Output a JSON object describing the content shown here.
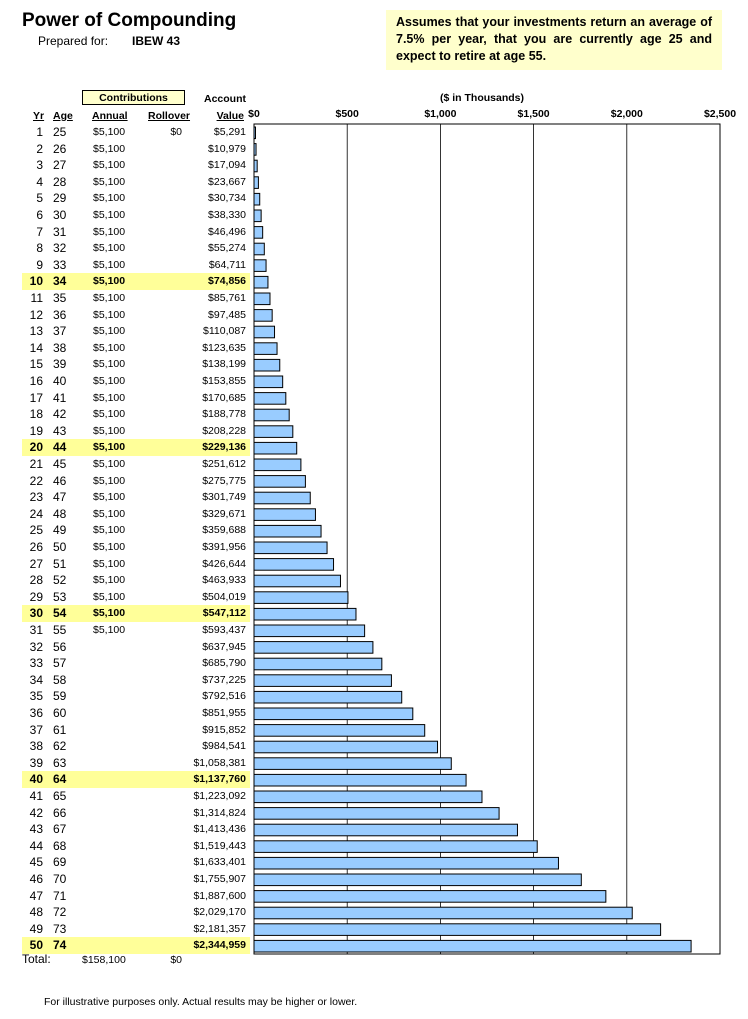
{
  "header": {
    "title": "Power of Compounding",
    "prepared_label": "Prepared for:",
    "prepared_name": "IBEW 43",
    "assumption": "Assumes that your investments return an average of 7.5% per year, that you are currently age 25 and expect to retire at age 55."
  },
  "table_headers": {
    "contributions": "Contributions",
    "account": "Account",
    "yr": "Yr",
    "age": "Age",
    "annual": "Annual",
    "rollover": "Rollover",
    "value": "Value"
  },
  "chart_data": {
    "type": "bar",
    "orientation": "horizontal",
    "title": "($ in Thousands)",
    "xlim": [
      0,
      2500
    ],
    "x_ticks": [
      "$0",
      "$500",
      "$1,000",
      "$1,500",
      "$2,000",
      "$2,500"
    ],
    "x_tick_values": [
      0,
      500,
      1000,
      1500,
      2000,
      2500
    ],
    "grid": true,
    "bar_color": "#99ccff",
    "highlight_color": "#ffff99",
    "categories": [
      "1",
      "2",
      "3",
      "4",
      "5",
      "6",
      "7",
      "8",
      "9",
      "10",
      "11",
      "12",
      "13",
      "14",
      "15",
      "16",
      "17",
      "18",
      "19",
      "20",
      "21",
      "22",
      "23",
      "24",
      "25",
      "26",
      "27",
      "28",
      "29",
      "30",
      "31",
      "32",
      "33",
      "34",
      "35",
      "36",
      "37",
      "38",
      "39",
      "40",
      "41",
      "42",
      "43",
      "44",
      "45",
      "46",
      "47",
      "48",
      "49",
      "50"
    ],
    "values": [
      5.291,
      10.979,
      17.094,
      23.667,
      30.734,
      38.33,
      46.496,
      55.274,
      64.711,
      74.856,
      85.761,
      97.485,
      110.087,
      123.635,
      138.199,
      153.855,
      170.685,
      188.778,
      208.228,
      229.136,
      251.612,
      275.775,
      301.749,
      329.671,
      359.688,
      391.956,
      426.644,
      463.933,
      504.019,
      547.112,
      593.437,
      637.945,
      685.79,
      737.225,
      792.516,
      851.955,
      915.852,
      984.541,
      1058.381,
      1137.76,
      1223.092,
      1314.824,
      1413.436,
      1519.443,
      1633.401,
      1755.907,
      1887.6,
      2029.17,
      2181.357,
      2344.959
    ]
  },
  "rows": [
    {
      "yr": "1",
      "age": "25",
      "annual": "$5,100",
      "rollover": "$0",
      "value": "$5,291",
      "hl": false
    },
    {
      "yr": "2",
      "age": "26",
      "annual": "$5,100",
      "rollover": "",
      "value": "$10,979",
      "hl": false
    },
    {
      "yr": "3",
      "age": "27",
      "annual": "$5,100",
      "rollover": "",
      "value": "$17,094",
      "hl": false
    },
    {
      "yr": "4",
      "age": "28",
      "annual": "$5,100",
      "rollover": "",
      "value": "$23,667",
      "hl": false
    },
    {
      "yr": "5",
      "age": "29",
      "annual": "$5,100",
      "rollover": "",
      "value": "$30,734",
      "hl": false
    },
    {
      "yr": "6",
      "age": "30",
      "annual": "$5,100",
      "rollover": "",
      "value": "$38,330",
      "hl": false
    },
    {
      "yr": "7",
      "age": "31",
      "annual": "$5,100",
      "rollover": "",
      "value": "$46,496",
      "hl": false
    },
    {
      "yr": "8",
      "age": "32",
      "annual": "$5,100",
      "rollover": "",
      "value": "$55,274",
      "hl": false
    },
    {
      "yr": "9",
      "age": "33",
      "annual": "$5,100",
      "rollover": "",
      "value": "$64,711",
      "hl": false
    },
    {
      "yr": "10",
      "age": "34",
      "annual": "$5,100",
      "rollover": "",
      "value": "$74,856",
      "hl": true
    },
    {
      "yr": "11",
      "age": "35",
      "annual": "$5,100",
      "rollover": "",
      "value": "$85,761",
      "hl": false
    },
    {
      "yr": "12",
      "age": "36",
      "annual": "$5,100",
      "rollover": "",
      "value": "$97,485",
      "hl": false
    },
    {
      "yr": "13",
      "age": "37",
      "annual": "$5,100",
      "rollover": "",
      "value": "$110,087",
      "hl": false
    },
    {
      "yr": "14",
      "age": "38",
      "annual": "$5,100",
      "rollover": "",
      "value": "$123,635",
      "hl": false
    },
    {
      "yr": "15",
      "age": "39",
      "annual": "$5,100",
      "rollover": "",
      "value": "$138,199",
      "hl": false
    },
    {
      "yr": "16",
      "age": "40",
      "annual": "$5,100",
      "rollover": "",
      "value": "$153,855",
      "hl": false
    },
    {
      "yr": "17",
      "age": "41",
      "annual": "$5,100",
      "rollover": "",
      "value": "$170,685",
      "hl": false
    },
    {
      "yr": "18",
      "age": "42",
      "annual": "$5,100",
      "rollover": "",
      "value": "$188,778",
      "hl": false
    },
    {
      "yr": "19",
      "age": "43",
      "annual": "$5,100",
      "rollover": "",
      "value": "$208,228",
      "hl": false
    },
    {
      "yr": "20",
      "age": "44",
      "annual": "$5,100",
      "rollover": "",
      "value": "$229,136",
      "hl": true
    },
    {
      "yr": "21",
      "age": "45",
      "annual": "$5,100",
      "rollover": "",
      "value": "$251,612",
      "hl": false
    },
    {
      "yr": "22",
      "age": "46",
      "annual": "$5,100",
      "rollover": "",
      "value": "$275,775",
      "hl": false
    },
    {
      "yr": "23",
      "age": "47",
      "annual": "$5,100",
      "rollover": "",
      "value": "$301,749",
      "hl": false
    },
    {
      "yr": "24",
      "age": "48",
      "annual": "$5,100",
      "rollover": "",
      "value": "$329,671",
      "hl": false
    },
    {
      "yr": "25",
      "age": "49",
      "annual": "$5,100",
      "rollover": "",
      "value": "$359,688",
      "hl": false
    },
    {
      "yr": "26",
      "age": "50",
      "annual": "$5,100",
      "rollover": "",
      "value": "$391,956",
      "hl": false
    },
    {
      "yr": "27",
      "age": "51",
      "annual": "$5,100",
      "rollover": "",
      "value": "$426,644",
      "hl": false
    },
    {
      "yr": "28",
      "age": "52",
      "annual": "$5,100",
      "rollover": "",
      "value": "$463,933",
      "hl": false
    },
    {
      "yr": "29",
      "age": "53",
      "annual": "$5,100",
      "rollover": "",
      "value": "$504,019",
      "hl": false
    },
    {
      "yr": "30",
      "age": "54",
      "annual": "$5,100",
      "rollover": "",
      "value": "$547,112",
      "hl": true
    },
    {
      "yr": "31",
      "age": "55",
      "annual": "$5,100",
      "rollover": "",
      "value": "$593,437",
      "hl": false
    },
    {
      "yr": "32",
      "age": "56",
      "annual": "",
      "rollover": "",
      "value": "$637,945",
      "hl": false
    },
    {
      "yr": "33",
      "age": "57",
      "annual": "",
      "rollover": "",
      "value": "$685,790",
      "hl": false
    },
    {
      "yr": "34",
      "age": "58",
      "annual": "",
      "rollover": "",
      "value": "$737,225",
      "hl": false
    },
    {
      "yr": "35",
      "age": "59",
      "annual": "",
      "rollover": "",
      "value": "$792,516",
      "hl": false
    },
    {
      "yr": "36",
      "age": "60",
      "annual": "",
      "rollover": "",
      "value": "$851,955",
      "hl": false
    },
    {
      "yr": "37",
      "age": "61",
      "annual": "",
      "rollover": "",
      "value": "$915,852",
      "hl": false
    },
    {
      "yr": "38",
      "age": "62",
      "annual": "",
      "rollover": "",
      "value": "$984,541",
      "hl": false
    },
    {
      "yr": "39",
      "age": "63",
      "annual": "",
      "rollover": "",
      "value": "$1,058,381",
      "hl": false
    },
    {
      "yr": "40",
      "age": "64",
      "annual": "",
      "rollover": "",
      "value": "$1,137,760",
      "hl": true
    },
    {
      "yr": "41",
      "age": "65",
      "annual": "",
      "rollover": "",
      "value": "$1,223,092",
      "hl": false
    },
    {
      "yr": "42",
      "age": "66",
      "annual": "",
      "rollover": "",
      "value": "$1,314,824",
      "hl": false
    },
    {
      "yr": "43",
      "age": "67",
      "annual": "",
      "rollover": "",
      "value": "$1,413,436",
      "hl": false
    },
    {
      "yr": "44",
      "age": "68",
      "annual": "",
      "rollover": "",
      "value": "$1,519,443",
      "hl": false
    },
    {
      "yr": "45",
      "age": "69",
      "annual": "",
      "rollover": "",
      "value": "$1,633,401",
      "hl": false
    },
    {
      "yr": "46",
      "age": "70",
      "annual": "",
      "rollover": "",
      "value": "$1,755,907",
      "hl": false
    },
    {
      "yr": "47",
      "age": "71",
      "annual": "",
      "rollover": "",
      "value": "$1,887,600",
      "hl": false
    },
    {
      "yr": "48",
      "age": "72",
      "annual": "",
      "rollover": "",
      "value": "$2,029,170",
      "hl": false
    },
    {
      "yr": "49",
      "age": "73",
      "annual": "",
      "rollover": "",
      "value": "$2,181,357",
      "hl": false
    },
    {
      "yr": "50",
      "age": "74",
      "annual": "",
      "rollover": "",
      "value": "$2,344,959",
      "hl": true
    }
  ],
  "totals": {
    "label": "Total:",
    "annual": "$158,100",
    "rollover": "$0"
  },
  "footnote": "For illustrative purposes only.  Actual results may be higher or lower."
}
